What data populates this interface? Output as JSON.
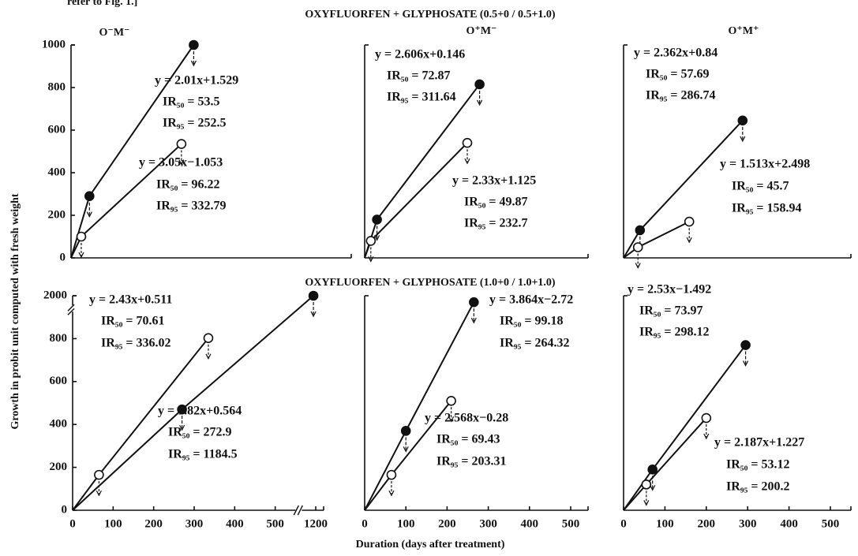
{
  "header_note": "refer to Fig. 1.]",
  "row_titles": [
    "OXYFLUORFEN + GLYPHOSATE (0.5+0 / 0.5+1.0)",
    "OXYFLUORFEN + GLYPHOSATE (1.0+0 / 1.0+1.0)"
  ],
  "y_axis_label": "Growth in probit unit computed with fresh weight",
  "x_axis_label": "Duration (days after treatment)",
  "chart_data": [
    {
      "type": "line",
      "title": "O⁻M⁻",
      "xlim": [
        0,
        500
      ],
      "ylim": [
        0,
        1000
      ],
      "yticks": [
        0,
        200,
        400,
        600,
        800,
        1000
      ],
      "series": [
        {
          "color": "#111111",
          "marker_fill": "#111111",
          "x": [
            0,
            45,
            300
          ],
          "values": [
            0,
            290,
            1000
          ]
        },
        {
          "color": "#111111",
          "marker_fill": "#ffffff",
          "x": [
            0,
            25,
            270
          ],
          "values": [
            0,
            100,
            535
          ]
        }
      ],
      "annotations": [
        "y = 2.01x+1.529",
        "IR₅₀ = 53.5",
        "IR₉₅ = 252.5",
        "y = 3.05x−1.053",
        "IR₅₀ = 96.22",
        "IR₉₅ = 332.79"
      ]
    },
    {
      "type": "line",
      "title": "O⁺M⁻",
      "xlim": [
        0,
        500
      ],
      "ylim": [
        0,
        1000
      ],
      "series": [
        {
          "color": "#111111",
          "marker_fill": "#111111",
          "x": [
            0,
            30,
            280
          ],
          "values": [
            0,
            180,
            815
          ]
        },
        {
          "color": "#111111",
          "marker_fill": "#ffffff",
          "x": [
            0,
            15,
            250
          ],
          "values": [
            0,
            80,
            540
          ]
        }
      ],
      "annotations": [
        "y = 2.606x+0.146",
        "IR₅₀ = 72.87",
        "IR₉₅ = 311.64",
        "y = 2.33x+1.125",
        "IR₅₀ = 49.87",
        "IR₉₅ = 232.7"
      ]
    },
    {
      "type": "line",
      "title": "O⁺M⁺",
      "xlim": [
        0,
        500
      ],
      "ylim": [
        0,
        1000
      ],
      "series": [
        {
          "color": "#111111",
          "marker_fill": "#111111",
          "x": [
            0,
            40,
            290
          ],
          "values": [
            0,
            130,
            645
          ]
        },
        {
          "color": "#111111",
          "marker_fill": "#ffffff",
          "x": [
            0,
            35,
            160
          ],
          "values": [
            0,
            50,
            170
          ]
        }
      ],
      "annotations": [
        "y = 2.362x+0.84",
        "IR₅₀ = 57.69",
        "IR₉₅ = 286.74",
        "y = 1.513x+2.498",
        "IR₅₀ = 45.7",
        "IR₉₅ = 158.94"
      ]
    },
    {
      "type": "line",
      "xlim": [
        0,
        1200
      ],
      "xticks": [
        0,
        100,
        200,
        300,
        400,
        500,
        1200
      ],
      "xbreak": true,
      "ylim": [
        0,
        2000
      ],
      "yticks": [
        0,
        200,
        400,
        600,
        800,
        2000
      ],
      "ybreak": true,
      "series": [
        {
          "color": "#111111",
          "marker_fill": "#ffffff",
          "x": [
            0,
            65,
            335
          ],
          "values": [
            0,
            165,
            815
          ]
        },
        {
          "color": "#111111",
          "marker_fill": "#111111",
          "x": [
            0,
            270,
            1160
          ],
          "values": [
            0,
            470,
            2000
          ]
        }
      ],
      "annotations": [
        "y = 2.43x+0.511",
        "IR₅₀ = 70.61",
        "IR₉₅ = 336.02",
        "y = 1.82x+0.564",
        "IR₅₀ = 272.9",
        "IR₉₅ = 1184.5"
      ]
    },
    {
      "type": "line",
      "xlim": [
        0,
        500
      ],
      "xticks": [
        0,
        100,
        200,
        300,
        400,
        500
      ],
      "ylim": [
        0,
        1000
      ],
      "series": [
        {
          "color": "#111111",
          "marker_fill": "#111111",
          "x": [
            0,
            100,
            265
          ],
          "values": [
            0,
            370,
            970
          ]
        },
        {
          "color": "#111111",
          "marker_fill": "#ffffff",
          "x": [
            0,
            65,
            210
          ],
          "values": [
            0,
            165,
            510
          ]
        }
      ],
      "annotations": [
        "y = 3.864x−2.72",
        "IR₅₀ = 99.18",
        "IR₉₅ = 264.32",
        "y = 2.568x−0.28",
        "IR₅₀ = 69.43",
        "IR₉₅ = 203.31"
      ]
    },
    {
      "type": "line",
      "xlim": [
        0,
        500
      ],
      "xticks": [
        0,
        100,
        200,
        300,
        400,
        500
      ],
      "ylim": [
        0,
        1000
      ],
      "series": [
        {
          "color": "#111111",
          "marker_fill": "#111111",
          "x": [
            0,
            70,
            295
          ],
          "values": [
            0,
            190,
            770
          ]
        },
        {
          "color": "#111111",
          "marker_fill": "#ffffff",
          "x": [
            0,
            55,
            200
          ],
          "values": [
            0,
            120,
            430
          ]
        }
      ],
      "annotations": [
        "y = 2.53x−1.492",
        "IR₅₀ = 73.97",
        "IR₉₅ = 298.12",
        "y = 2.187x+1.227",
        "IR₅₀ = 53.12",
        "IR₉₅ = 200.2"
      ]
    }
  ]
}
